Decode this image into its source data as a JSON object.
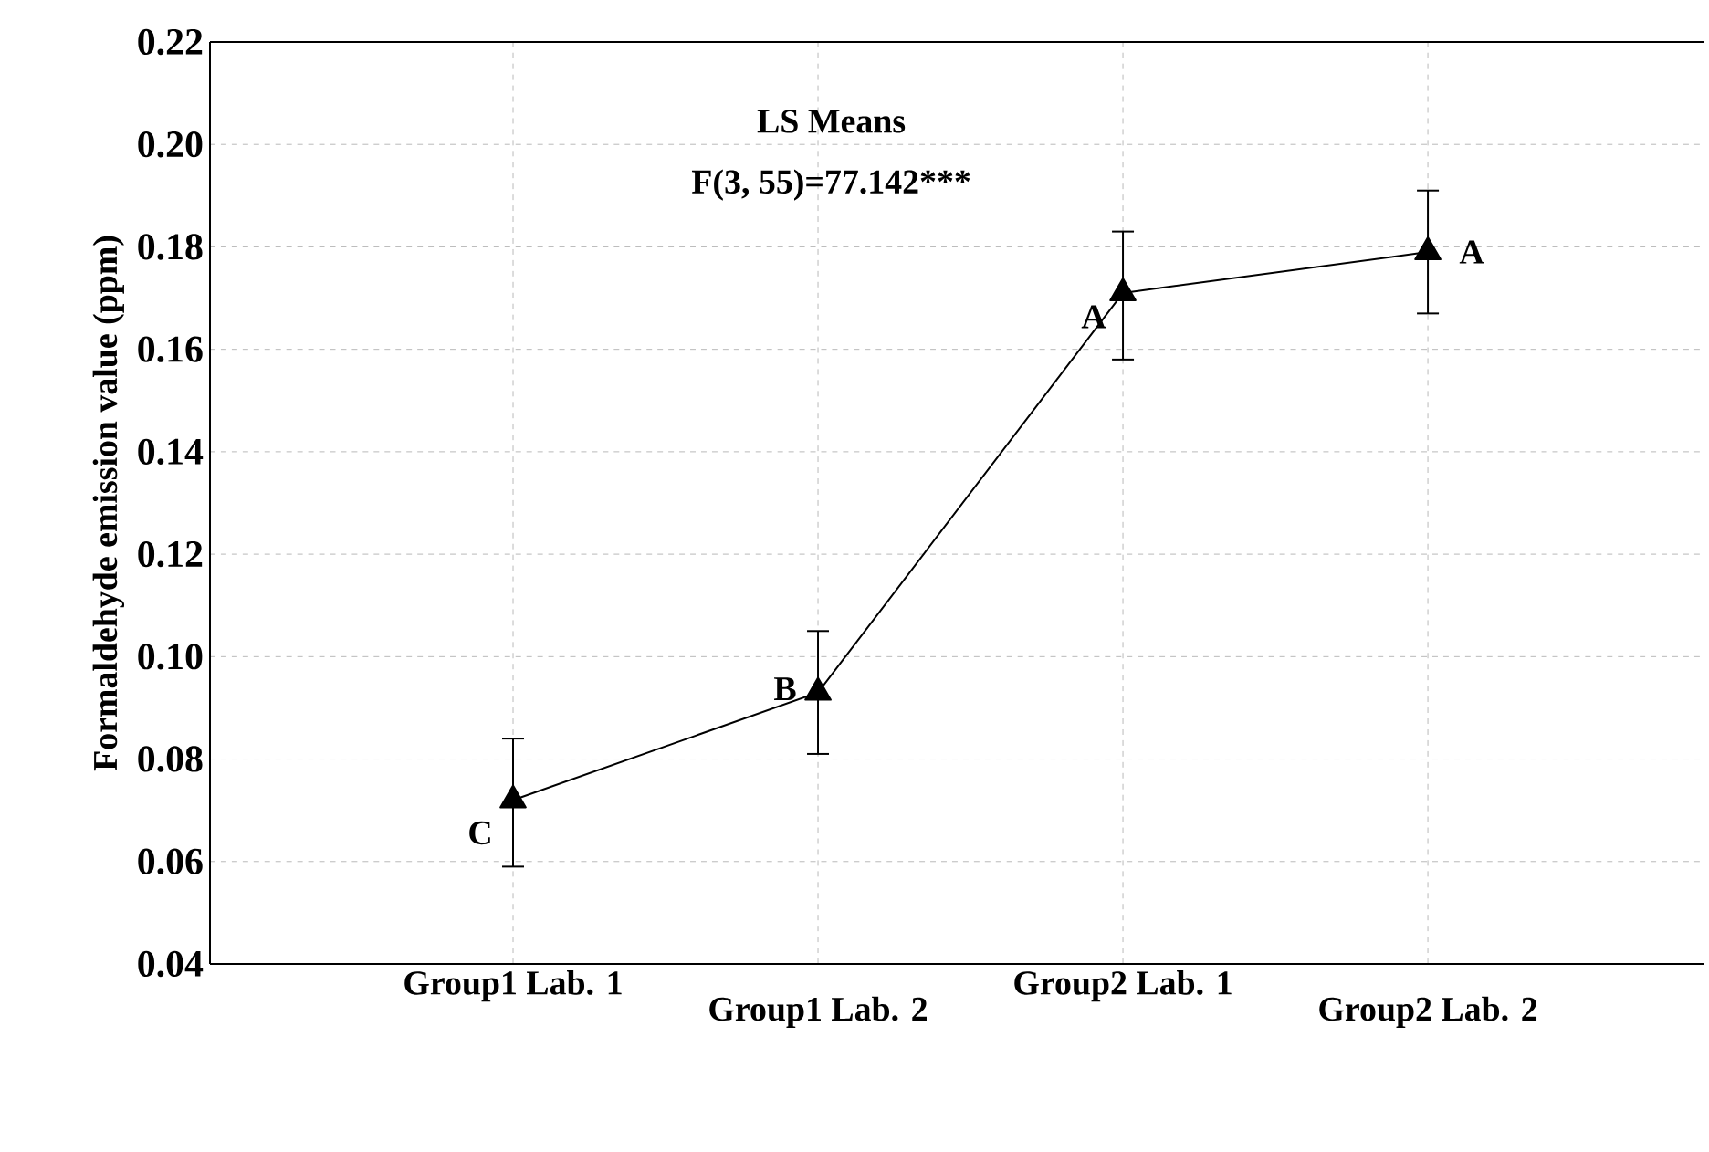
{
  "chart_data": {
    "type": "line",
    "title": "LS Means",
    "subtitle": "F(3, 55)=77.142***",
    "ylabel": "Formaldehyde emission value (ppm)",
    "categories": [
      "Group1 Lab. 1",
      "Group1 Lab. 2",
      "Group2 Lab. 1",
      "Group2 Lab. 2"
    ],
    "series": [
      {
        "color": "#000000",
        "values": [
          0.072,
          0.093,
          0.171,
          0.179
        ],
        "errors": [
          [
            0.059,
            0.084
          ],
          [
            0.081,
            0.105
          ],
          [
            0.158,
            0.183
          ],
          [
            0.167,
            0.191
          ]
        ]
      }
    ],
    "ylim": [
      0.04,
      0.22
    ],
    "yticks": [
      0.04,
      0.06,
      0.08,
      {
        "value": 0.1,
        "label": "0.10"
      },
      0.12,
      0.14,
      0.16,
      0.18,
      {
        "value": 0.2,
        "label": "0.20"
      },
      0.22
    ],
    "grid": true,
    "marker": "triangle",
    "line_style": "solid",
    "annotations": [
      {
        "text": "C",
        "x": "Group1 Lab. 1",
        "y": 0.072
      },
      {
        "text": "B",
        "x": "Group1 Lab. 2",
        "y": 0.093
      },
      {
        "text": "A",
        "x": "Group2 Lab. 1",
        "y": 0.171
      },
      {
        "text": "A",
        "x": "Group2 Lab. 2",
        "y": 0.179
      }
    ]
  }
}
